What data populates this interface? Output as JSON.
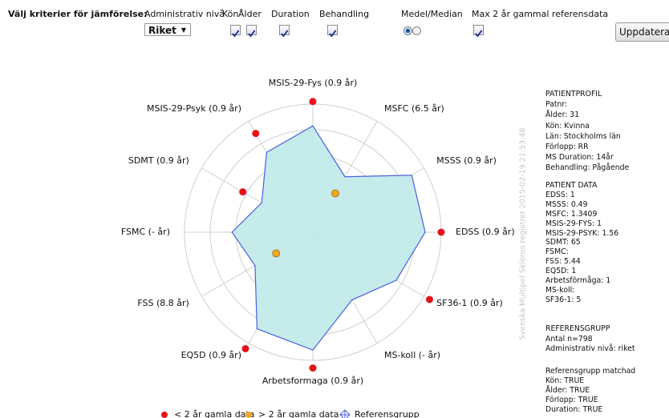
{
  "toolbar": {
    "prompt": "Välj kriterier för jämförelse:",
    "admin_label": "Administrativ nivå",
    "admin_value": "Riket",
    "filters": [
      {
        "label": "Kön",
        "checked": true
      },
      {
        "label": "Ålder",
        "checked": true
      },
      {
        "label": "Duration",
        "checked": true
      },
      {
        "label": "Behandling",
        "checked": true
      }
    ],
    "mean_label": "Medel/Median",
    "mean_selected": 0,
    "max_label": "Max 2 år gammal referensdata",
    "max_checked": true,
    "button": "Uppdatera"
  },
  "chart_data": {
    "type": "radar",
    "categories": [
      "MSIS-29-Fys (0.9 år)",
      "MSFC (6.5 år)",
      "MSSS (0.9 år)",
      "EDSS (0.9 år)",
      "SF36-1 (0.9 år)",
      "MS-koll (- år)",
      "Arbetsformaga (0.9 år)",
      "EQ5D (0.9 år)",
      "FSS (8.8 år)",
      "FSMC (- år)",
      "SDMT (0.9 år)",
      "MSIS-29-Psyk (0.9 år)"
    ],
    "rlim": [
      0,
      1
    ],
    "rticks": [
      0.2,
      0.4,
      0.6,
      0.8,
      1
    ],
    "series": [
      {
        "name": "Referensgrupp",
        "color": "#4a5fe0",
        "fill": "#bfe9e9",
        "kind": "area",
        "values": [
          0.83,
          0.5,
          0.89,
          0.875,
          0.75,
          0.61,
          0.92,
          0.87,
          0.52,
          0.63,
          0.46,
          0.72
        ]
      },
      {
        "name": "< 2 år gamla data",
        "color": "#e8121a",
        "kind": "point",
        "values": [
          1.02,
          null,
          null,
          1.0,
          1.05,
          null,
          1.06,
          1.05,
          null,
          null,
          0.63,
          0.89
        ]
      },
      {
        "name": "> 2 år gamla data",
        "color": "#f5a623",
        "kind": "point",
        "values": [
          null,
          0.35,
          null,
          null,
          null,
          null,
          null,
          null,
          0.33,
          null,
          null,
          null
        ]
      }
    ],
    "watermark": "Svenska Multipel Skleros registret 2015-02-19 21:53:48"
  },
  "side_panel": [
    [
      "PATIENTPROFIL",
      "Patnr:",
      "Ålder: 31",
      "Kön: Kvinna",
      "Län: Stockholms län",
      "Förlopp: RR",
      "MS Duration: 14år",
      "Behandling: Pågående"
    ],
    [
      "PATIENT DATA",
      "EDSS: 1",
      "MSSS: 0.49",
      "MSFC: 1.3409",
      "MSIS-29-FYS: 1",
      "MSIS-29-PSYK: 1.56",
      "SDMT: 65",
      "FSMC:",
      "FSS: 5.44",
      "EQ5D: 1",
      "Arbetsförmåga: 1",
      "MS-koll:",
      "SF36-1: 5"
    ],
    [
      "REFERENSGRUPP",
      "Antal n=798",
      "Administrativ nivå: riket"
    ],
    [
      "Referensgrupp matchad",
      "Kön: TRUE",
      "Ålder: TRUE",
      "Förlopp: TRUE",
      "Duration: TRUE"
    ]
  ]
}
